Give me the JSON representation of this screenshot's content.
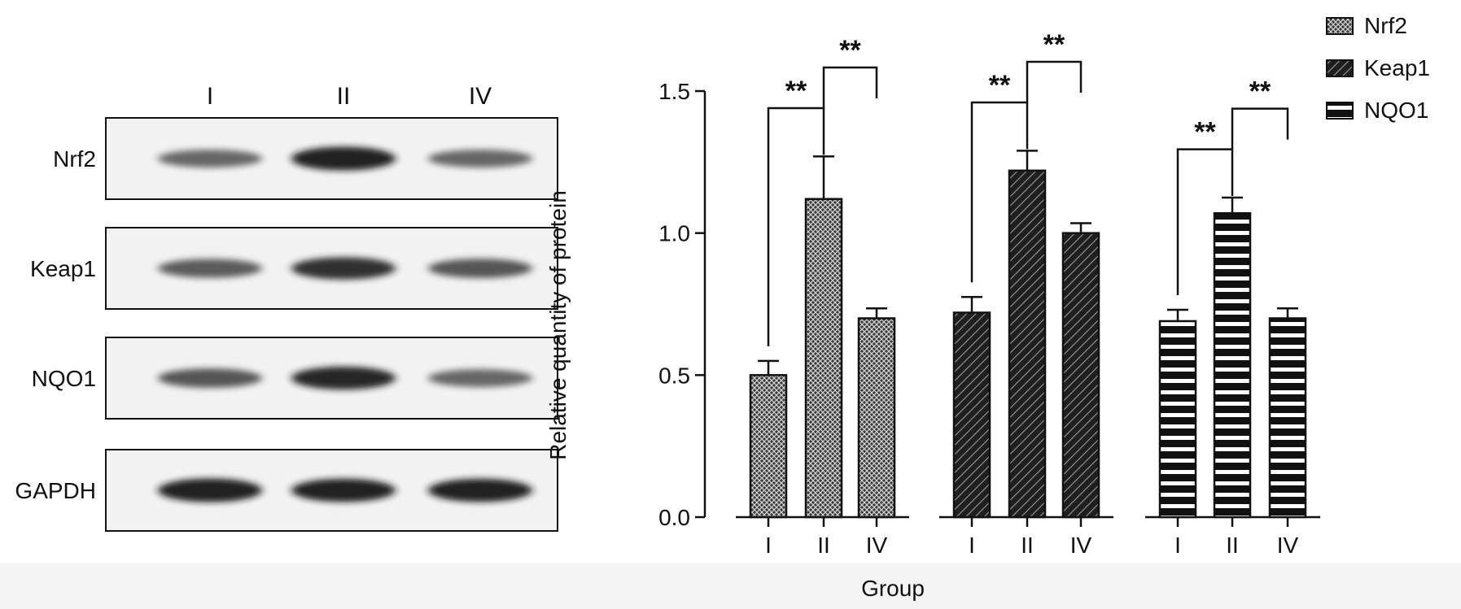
{
  "blot": {
    "lanes": [
      "I",
      "II",
      "IV"
    ],
    "rows": [
      {
        "label": "Nrf2",
        "band_intensity": [
          0.55,
          0.95,
          0.55
        ]
      },
      {
        "label": "Keap1",
        "band_intensity": [
          0.62,
          0.85,
          0.65
        ]
      },
      {
        "label": "NQO1",
        "band_intensity": [
          0.65,
          0.9,
          0.55
        ]
      },
      {
        "label": "GAPDH",
        "band_intensity": [
          0.95,
          0.92,
          0.92
        ]
      }
    ]
  },
  "chart_data": {
    "type": "bar",
    "ylabel": "Relative quantity of protein",
    "xlabel": "Group",
    "ylim": [
      0,
      1.5
    ],
    "yticks": [
      0.0,
      0.5,
      1.0,
      1.5
    ],
    "ytick_labels": [
      "0.0",
      "0.5",
      "1.0",
      "1.5"
    ],
    "categories": [
      "I",
      "II",
      "IV"
    ],
    "legend": {
      "position": "top-right"
    },
    "grid": false,
    "series": [
      {
        "name": "Nrf2",
        "pattern": "crosshatch",
        "values": [
          0.5,
          1.12,
          0.7
        ],
        "errors": [
          0.05,
          0.15,
          0.035
        ]
      },
      {
        "name": "Keap1",
        "pattern": "diagonal",
        "values": [
          0.72,
          1.22,
          1.0
        ],
        "errors": [
          0.055,
          0.07,
          0.035
        ]
      },
      {
        "name": "NQO1",
        "pattern": "horizontal",
        "values": [
          0.69,
          1.07,
          0.7
        ],
        "errors": [
          0.04,
          0.055,
          0.035
        ]
      }
    ],
    "significance": [
      {
        "series": "Nrf2",
        "pairs": [
          [
            "I",
            "II"
          ],
          [
            "II",
            "IV"
          ]
        ],
        "label": [
          "**",
          "**"
        ]
      },
      {
        "series": "Keap1",
        "pairs": [
          [
            "I",
            "II"
          ],
          [
            "II",
            "IV"
          ]
        ],
        "label": [
          "**",
          "**"
        ]
      },
      {
        "series": "NQO1",
        "pairs": [
          [
            "I",
            "II"
          ],
          [
            "II",
            "IV"
          ]
        ],
        "label": [
          "**",
          "**"
        ]
      }
    ],
    "colors": {
      "bar_fill": "#1a1a1a",
      "pattern_light": "#ffffff",
      "axis": "#111111"
    }
  }
}
